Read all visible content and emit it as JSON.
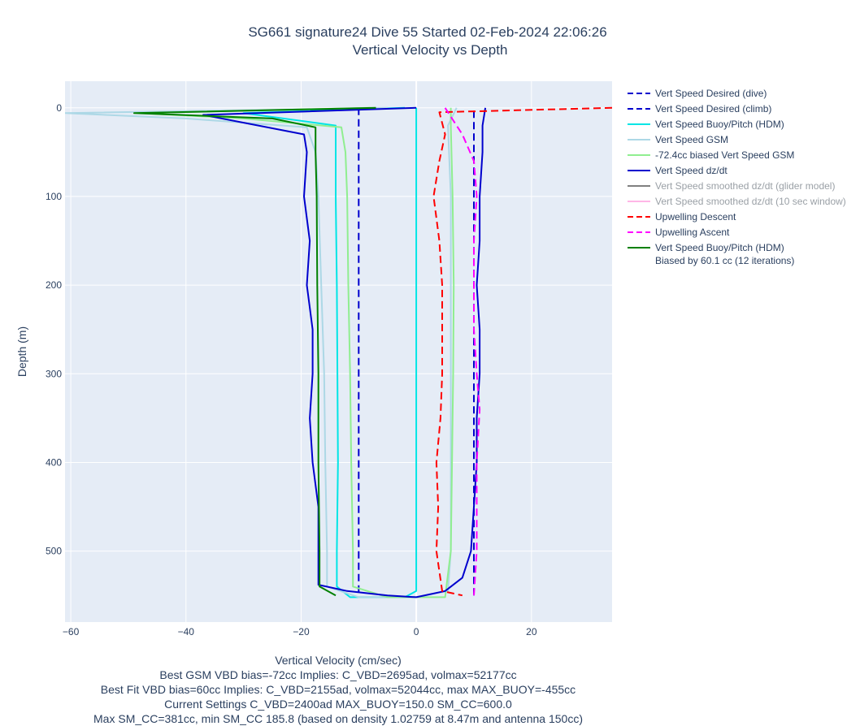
{
  "chart_data": {
    "type": "line",
    "title": "SG661 signature24 Dive 55 Started 02-Feb-2024 22:06:26",
    "subtitle": "Vertical Velocity vs Depth",
    "xlabel": "Vertical Velocity (cm/sec)",
    "ylabel": "Depth (m)",
    "xlim": [
      -61,
      34
    ],
    "ylim": [
      580,
      -30
    ],
    "y_reversed": true,
    "x_ticks": [
      "−60",
      "−40",
      "−20",
      "0",
      "20"
    ],
    "x_tick_values": [
      -60,
      -40,
      -20,
      0,
      20
    ],
    "y_ticks": [
      "0",
      "100",
      "200",
      "300",
      "400",
      "500"
    ],
    "y_tick_values": [
      0,
      100,
      200,
      300,
      400,
      500
    ],
    "grid": true,
    "legend_position": "right",
    "notes": [
      "Best GSM VBD bias=-72cc Implies: C_VBD=2695ad, volmax=52177cc",
      "Best Fit VBD bias=60cc Implies: C_VBD=2155ad, volmax=52044cc, max MAX_BUOY=-455cc",
      "Current Settings C_VBD=2400ad MAX_BUOY=150.0 SM_CC=600.0",
      "Max SM_CC=381cc, min SM_CC 185.8 (based on density 1.02759 at 8.47m and antenna 150cc)"
    ],
    "series": [
      {
        "name": "Vert Speed Desired (dive)",
        "color": "#0000cd",
        "dash": "dash",
        "visible": true,
        "points": [
          [
            -10,
            0
          ],
          [
            -10,
            550
          ]
        ]
      },
      {
        "name": "Vert Speed Desired (climb)",
        "color": "#0000cd",
        "dash": "dash",
        "visible": true,
        "points": [
          [
            10,
            550
          ],
          [
            10,
            0
          ]
        ]
      },
      {
        "name": "Vert Speed Buoy/Pitch (HDM)",
        "color": "#00e5e5",
        "dash": "solid",
        "visible": true,
        "points": [
          [
            -2,
            0
          ],
          [
            -30,
            6
          ],
          [
            -14,
            20
          ],
          [
            -14,
            100
          ],
          [
            -13.8,
            200
          ],
          [
            -13.7,
            300
          ],
          [
            -13.6,
            400
          ],
          [
            -13.8,
            500
          ],
          [
            -13.8,
            540
          ],
          [
            -11.5,
            552
          ],
          [
            -2,
            552
          ],
          [
            0,
            545
          ],
          [
            0,
            0
          ]
        ]
      },
      {
        "name": "Vert Speed GSM",
        "color": "#add8e6",
        "dash": "solid",
        "visible": true,
        "points": [
          [
            -5,
            0
          ],
          [
            -61,
            6
          ],
          [
            -40,
            12
          ],
          [
            -19,
            22
          ],
          [
            -17.5,
            50
          ],
          [
            -17,
            100
          ],
          [
            -16.5,
            200
          ],
          [
            -16,
            300
          ],
          [
            -15.8,
            400
          ],
          [
            -15.5,
            500
          ],
          [
            -15.5,
            540
          ],
          [
            -10,
            552
          ],
          [
            0,
            552
          ],
          [
            5.5,
            545
          ],
          [
            6,
            500
          ],
          [
            6,
            300
          ],
          [
            6,
            100
          ],
          [
            5.5,
            20
          ],
          [
            7,
            0
          ]
        ]
      },
      {
        "name": "-72.4cc biased Vert Speed GSM",
        "color": "#90ee90",
        "dash": "solid",
        "visible": true,
        "points": [
          [
            -8,
            0
          ],
          [
            -48,
            6
          ],
          [
            -30,
            12
          ],
          [
            -13,
            22
          ],
          [
            -12.3,
            50
          ],
          [
            -12,
            100
          ],
          [
            -11.8,
            200
          ],
          [
            -11.5,
            300
          ],
          [
            -11.3,
            400
          ],
          [
            -11,
            500
          ],
          [
            -11,
            540
          ],
          [
            -5,
            552
          ],
          [
            5,
            552
          ],
          [
            6,
            500
          ],
          [
            6.2,
            400
          ],
          [
            6.4,
            300
          ],
          [
            6.5,
            200
          ],
          [
            6.3,
            100
          ],
          [
            6,
            20
          ],
          [
            6,
            0
          ]
        ]
      },
      {
        "name": "Vert Speed dz/dt",
        "color": "#0000cd",
        "dash": "solid",
        "visible": true,
        "points": [
          [
            0,
            0
          ],
          [
            -37,
            8
          ],
          [
            -19.5,
            30
          ],
          [
            -19,
            50
          ],
          [
            -19.5,
            100
          ],
          [
            -18.5,
            150
          ],
          [
            -19,
            200
          ],
          [
            -18,
            250
          ],
          [
            -18,
            300
          ],
          [
            -18.5,
            350
          ],
          [
            -18,
            400
          ],
          [
            -17,
            450
          ],
          [
            -17,
            500
          ],
          [
            -17,
            538
          ],
          [
            -12,
            545
          ],
          [
            -5,
            550
          ],
          [
            0,
            552
          ],
          [
            5,
            545
          ],
          [
            8,
            530
          ],
          [
            9.5,
            500
          ],
          [
            10,
            450
          ],
          [
            10.5,
            400
          ],
          [
            10.5,
            350
          ],
          [
            11,
            300
          ],
          [
            11,
            250
          ],
          [
            10.5,
            200
          ],
          [
            11,
            150
          ],
          [
            11,
            100
          ],
          [
            11.5,
            50
          ],
          [
            11.5,
            20
          ],
          [
            12,
            0
          ]
        ]
      },
      {
        "name": "Vert Speed smoothed dz/dt (glider model)",
        "color": "#808080",
        "dash": "solid",
        "visible": false,
        "points": []
      },
      {
        "name": "Vert Speed smoothed dz/dt (10 sec window)",
        "color": "#ffb6e6",
        "dash": "solid",
        "visible": false,
        "points": []
      },
      {
        "name": "Upwelling Descent",
        "color": "#ff0000",
        "dash": "dash",
        "visible": true,
        "points": [
          [
            34,
            0
          ],
          [
            4,
            5
          ],
          [
            5,
            30
          ],
          [
            4,
            60
          ],
          [
            3,
            100
          ],
          [
            4,
            150
          ],
          [
            4.5,
            200
          ],
          [
            4.5,
            300
          ],
          [
            4.2,
            350
          ],
          [
            3.5,
            400
          ],
          [
            3.8,
            450
          ],
          [
            3.5,
            500
          ],
          [
            4.5,
            545
          ],
          [
            8,
            550
          ]
        ]
      },
      {
        "name": "Upwelling Ascent",
        "color": "#ff00ff",
        "dash": "dash",
        "visible": true,
        "points": [
          [
            10,
            550
          ],
          [
            10.5,
            500
          ],
          [
            10.5,
            450
          ],
          [
            10.5,
            400
          ],
          [
            11,
            340
          ],
          [
            10.5,
            300
          ],
          [
            10,
            250
          ],
          [
            10,
            200
          ],
          [
            10,
            150
          ],
          [
            10.5,
            100
          ],
          [
            10,
            60
          ],
          [
            8,
            30
          ],
          [
            6,
            10
          ],
          [
            5,
            0
          ]
        ]
      },
      {
        "name": "Vert Speed Buoy/Pitch (HDM) Biased by 60.1 cc (12 iterations)",
        "color": "#008000",
        "dash": "solid",
        "visible": true,
        "points": [
          [
            -7,
            0
          ],
          [
            -49,
            6
          ],
          [
            -25,
            12
          ],
          [
            -17.5,
            22
          ],
          [
            -17.5,
            50
          ],
          [
            -17.3,
            100
          ],
          [
            -17.2,
            200
          ],
          [
            -17,
            300
          ],
          [
            -17,
            400
          ],
          [
            -16.8,
            500
          ],
          [
            -16.8,
            540
          ],
          [
            -14,
            550
          ]
        ]
      }
    ]
  }
}
